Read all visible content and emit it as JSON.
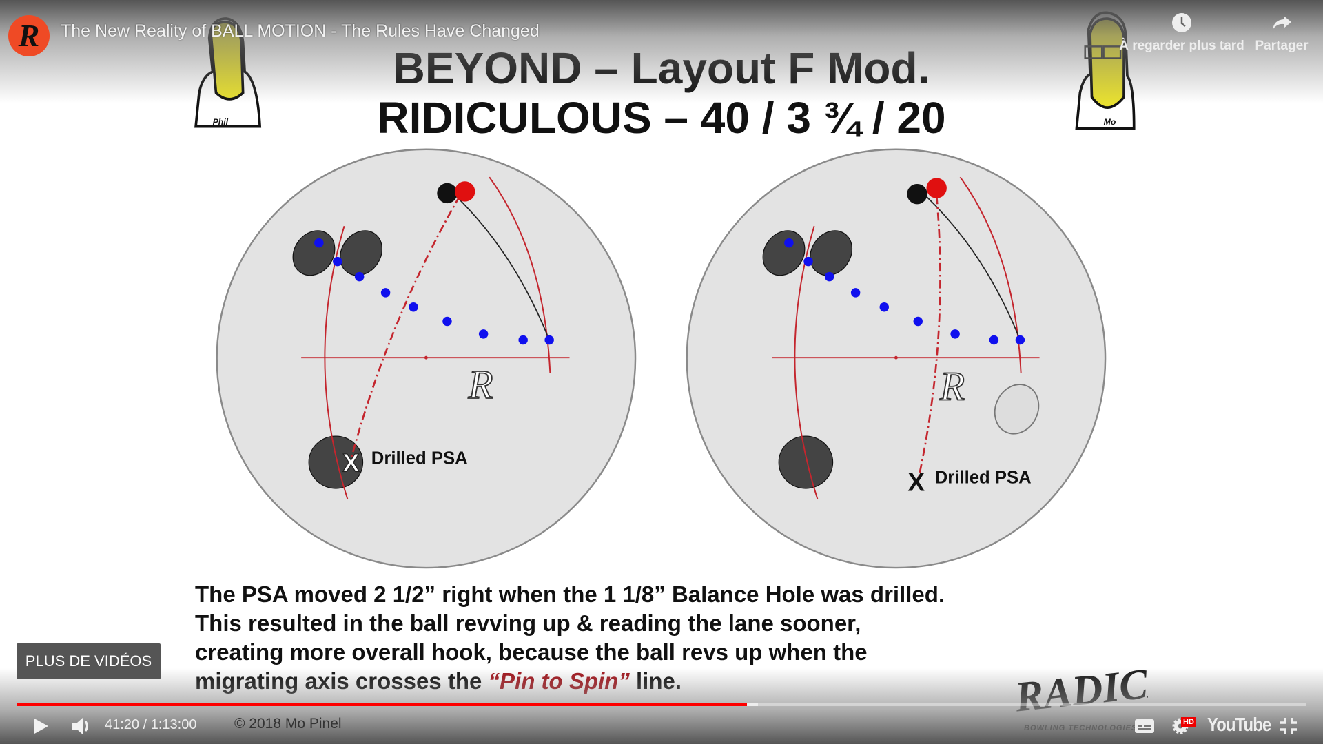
{
  "video": {
    "title": "The New Reality of BALL MOTION - The Rules Have Changed",
    "channel_logo_letter": "R",
    "watch_later_label": "À regarder plus tard",
    "share_label": "Partager",
    "more_videos_label": "PLUS DE VIDÉOS",
    "current_time": "41:20",
    "duration": "1:13:00",
    "time_display": "41:20 / 1:13:00",
    "progress_percent": 56.6,
    "buffered_percent": 57.5,
    "hd_badge": "HD",
    "youtube_logo": "YouTube",
    "accent_color": "#ff0000"
  },
  "slide": {
    "title_line1": "BEYOND – Layout F Mod.",
    "title_line2": "RIDICULOUS – 40 / 3 ¾ / 20",
    "left_character_tag": "Phil",
    "right_character_tag": "Mo",
    "left_diagram_label": "Drilled PSA",
    "right_diagram_label": "Drilled PSA",
    "body_lines": [
      "The PSA moved 2 1/2” right when the 1 1/8” Balance Hole was drilled.",
      "This resulted in the ball revving up & reading the lane sooner,",
      "creating more overall hook, because the ball revs up when the"
    ],
    "body_line4_prefix": "migrating axis crosses the ",
    "body_line4_highlight": "“Pin to Spin”",
    "body_line4_suffix": " line.",
    "copyright": "© 2018 Mo Pinel",
    "sponsor_logo": "RADICAL",
    "sponsor_tagline": "BOWLING TECHNOLOGIES",
    "highlight_color": "#a3141b"
  }
}
